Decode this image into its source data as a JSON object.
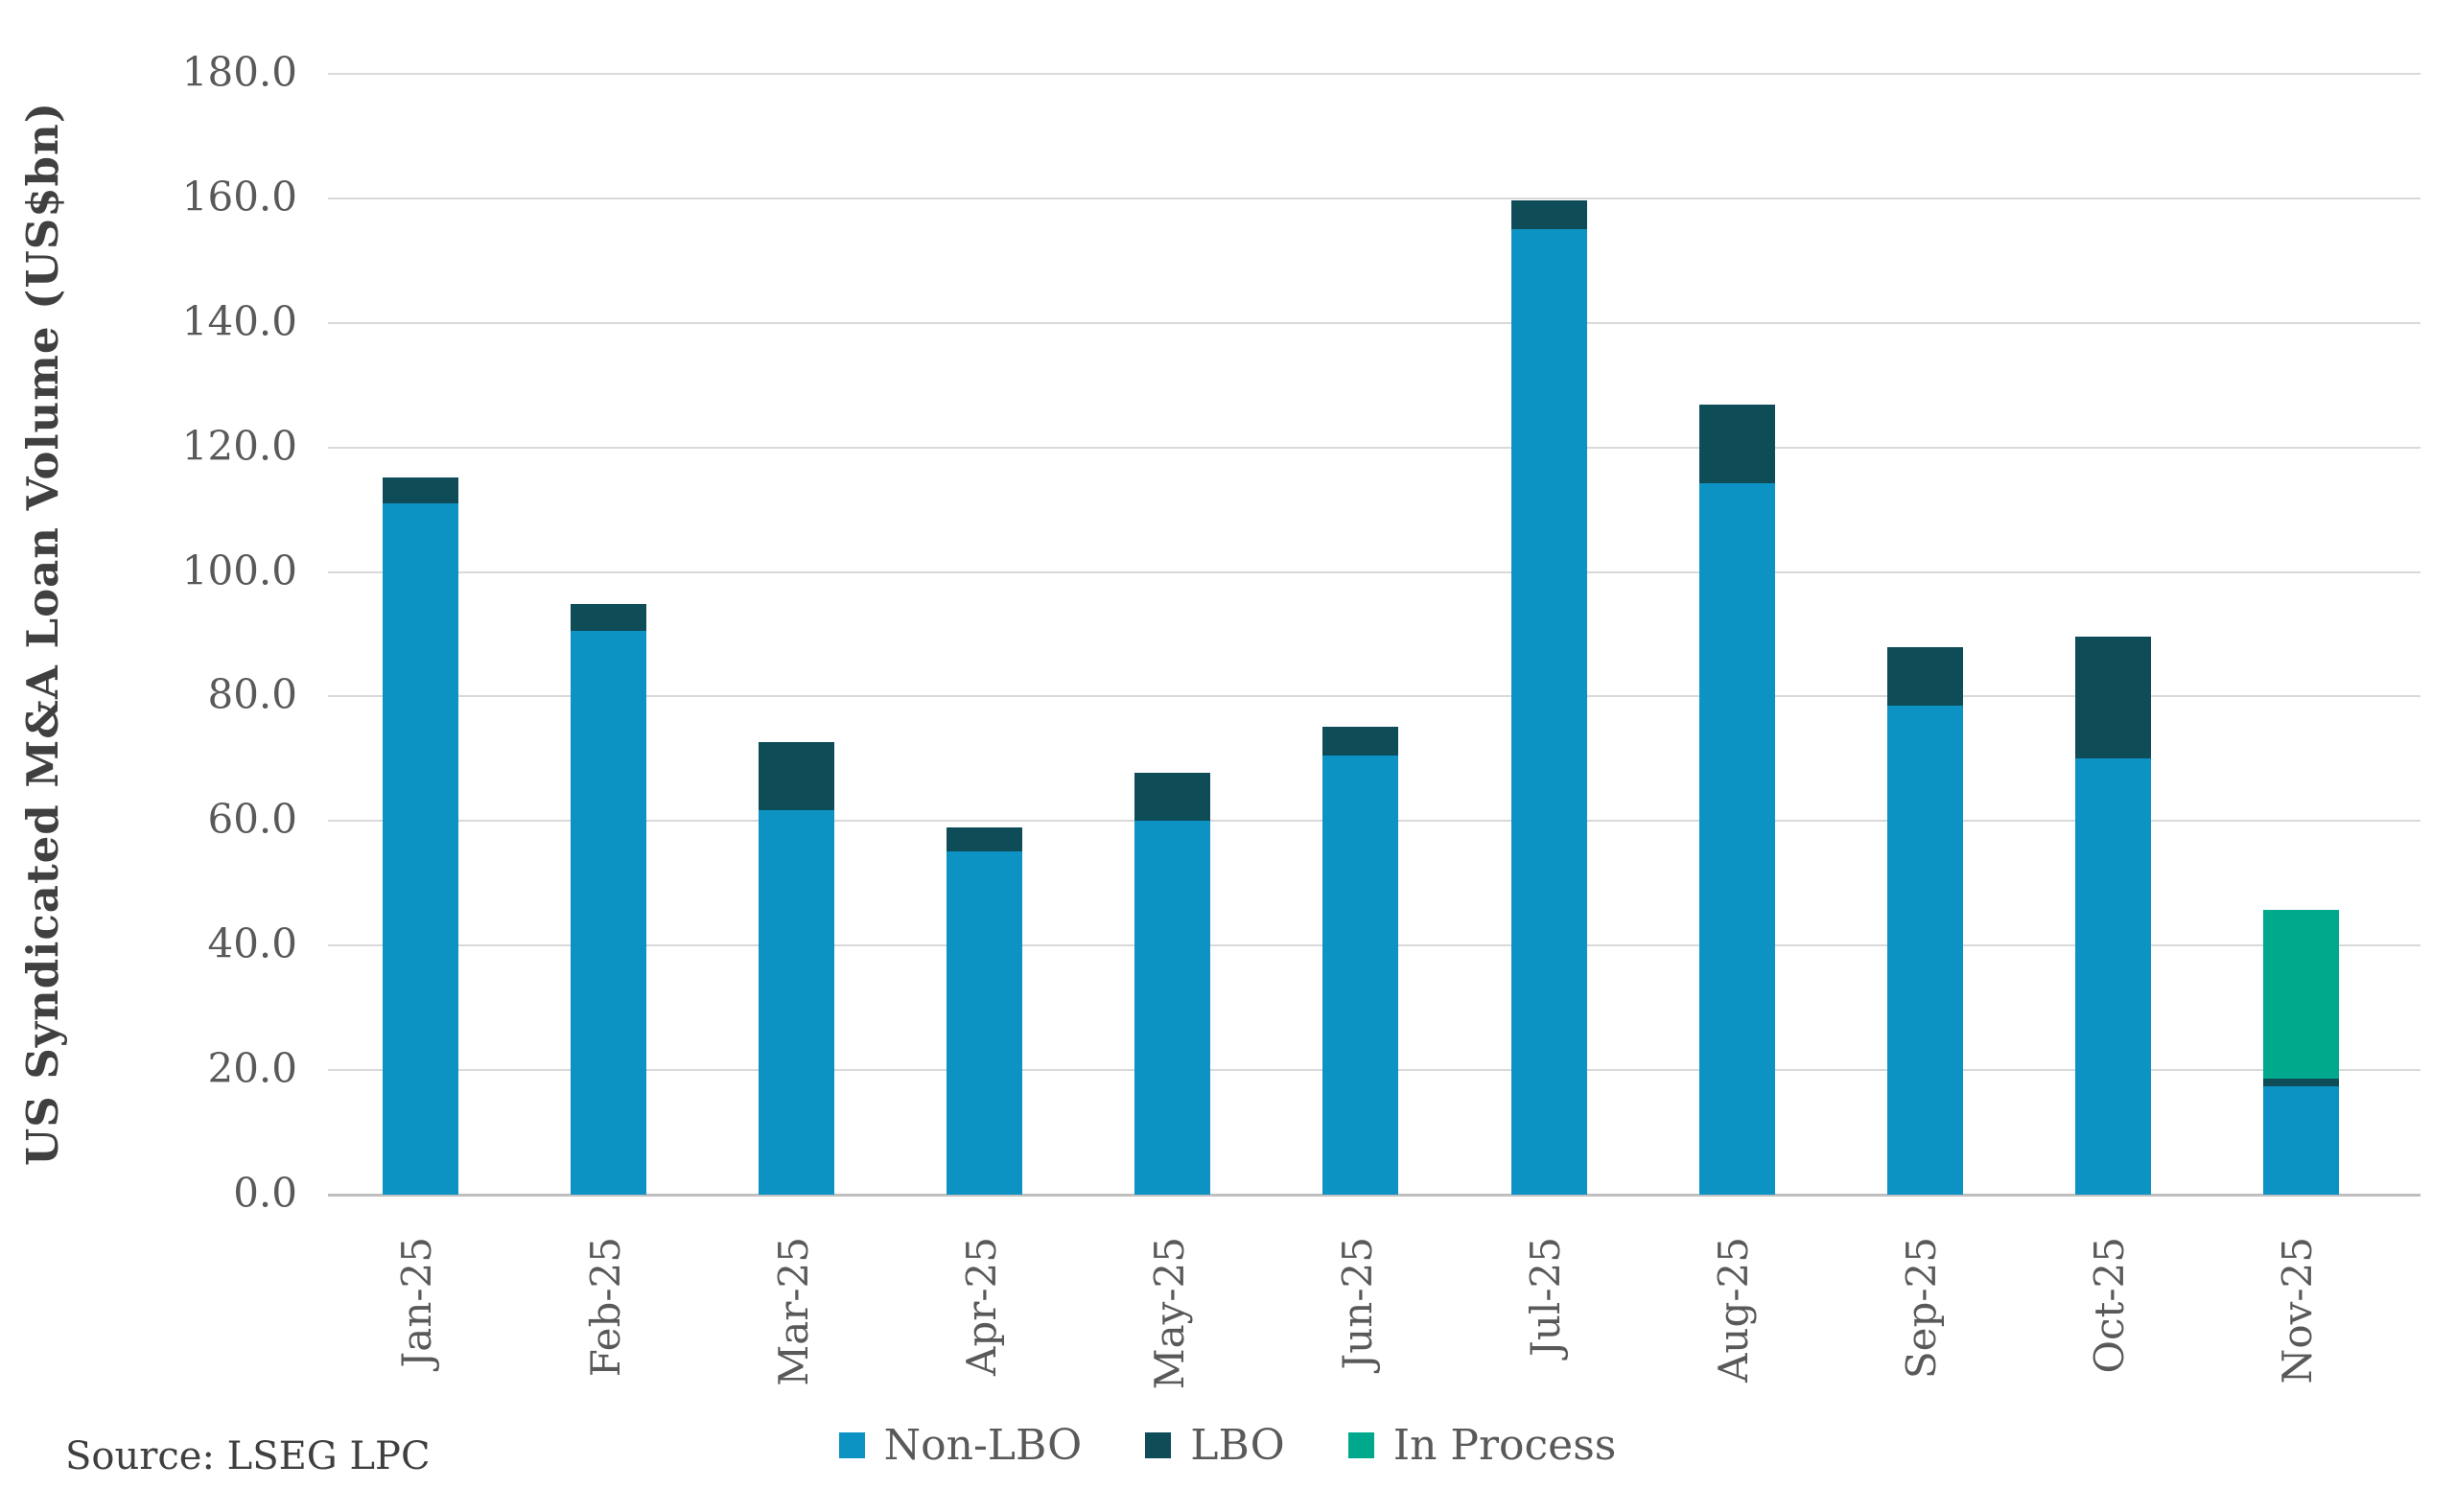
{
  "source_note": "Source: LSEG LPC",
  "chart_data": {
    "type": "bar",
    "stacked": true,
    "title": "",
    "xlabel": "",
    "ylabel": "US Syndicated M&A Loan Volume (US$bn)",
    "ylim": [
      0,
      180
    ],
    "ytick_step": 20,
    "yticks": [
      "0.0",
      "20.0",
      "40.0",
      "60.0",
      "80.0",
      "100.0",
      "120.0",
      "140.0",
      "160.0",
      "180.0"
    ],
    "grid": "horizontal",
    "legend_position": "bottom",
    "gridline_color": "#d9d9d9",
    "axis_line_color": "#bfbfbf",
    "tick_text_color": "#595959",
    "axis_title_color": "#404040",
    "categories": [
      "Jan-25",
      "Feb-25",
      "Mar-25",
      "Apr-25",
      "May-25",
      "Jun-25",
      "Jul-25",
      "Aug-25",
      "Sep-25",
      "Oct-25",
      "Nov-25"
    ],
    "series": [
      {
        "name": "Non-LBO",
        "color": "#0d92c4",
        "values": [
          111.0,
          90.5,
          61.8,
          55.1,
          60.0,
          70.6,
          155.0,
          114.2,
          78.5,
          70.0,
          17.4
        ]
      },
      {
        "name": "LBO",
        "color": "#0e4c58",
        "values": [
          4.2,
          4.3,
          10.9,
          3.9,
          7.8,
          4.6,
          4.7,
          12.7,
          9.5,
          19.6,
          1.2
        ]
      },
      {
        "name": "In Process",
        "color": "#00a98c",
        "values": [
          0,
          0,
          0,
          0,
          0,
          0,
          0,
          0,
          0,
          0,
          27.1
        ]
      }
    ],
    "totals": [
      115.2,
      94.8,
      72.7,
      59.0,
      67.8,
      75.2,
      159.7,
      126.9,
      88.0,
      89.6,
      45.7
    ]
  }
}
